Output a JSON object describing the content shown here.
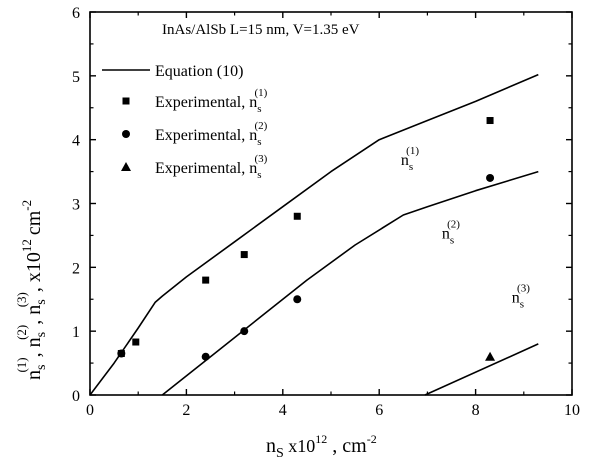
{
  "chart_data": {
    "type": "scatter",
    "title": "InAs/AlSb    L=15 nm,  V=1.35 eV",
    "xlabel": {
      "base": "n",
      "sub": "S",
      "mid": " x10",
      "sup": "12",
      "tail": " , cm",
      "sup2": "-2"
    },
    "ylabel": {
      "t1": "n",
      "s1": "s",
      "p1": "(1)",
      "t2": ", n",
      "s2": "s",
      "p2": "(2)",
      "t3": ", n",
      "s3": "s",
      "p3": "(3)",
      "t4": ",  x10",
      "p4": "12",
      "t5": "cm",
      "p5": "-2"
    },
    "xlim": [
      0,
      10
    ],
    "ylim": [
      0,
      6
    ],
    "xticks": [
      "0",
      "2",
      "4",
      "6",
      "8",
      "10"
    ],
    "yticks": [
      "0",
      "1",
      "2",
      "3",
      "4",
      "5",
      "6"
    ],
    "grid": false,
    "legend_position": "top-left",
    "legend": [
      {
        "label": "Equation (10)",
        "marker": "line"
      },
      {
        "label": "Experimental,  n",
        "sub": "s",
        "sup": "(1)",
        "marker": "square"
      },
      {
        "label": "Experimental,  n",
        "sub": "s",
        "sup": "(2)",
        "marker": "circle"
      },
      {
        "label": "Experimental,  n",
        "sub": "s",
        "sup": "(3)",
        "marker": "triangle"
      }
    ],
    "lines": [
      {
        "label": {
          "t": "n",
          "sub": "s",
          "sup": "(1)"
        },
        "label_at": [
          6.45,
          3.6
        ],
        "x": [
          0,
          0.5,
          1.0,
          1.35,
          1.5,
          2.0,
          3.0,
          4.0,
          5.0,
          6.0,
          7.0,
          8.0,
          9.3
        ],
        "y": [
          0,
          0.5,
          1.05,
          1.45,
          1.55,
          1.85,
          2.4,
          2.95,
          3.5,
          4.0,
          4.3,
          4.6,
          5.02
        ]
      },
      {
        "label": {
          "t": "n",
          "sub": "s",
          "sup": "(2)"
        },
        "label_at": [
          7.3,
          2.45
        ],
        "x": [
          1.5,
          2.5,
          3.5,
          4.5,
          5.5,
          6.5,
          7.0,
          8.0,
          9.3
        ],
        "y": [
          0,
          0.6,
          1.2,
          1.8,
          2.35,
          2.82,
          2.95,
          3.2,
          3.5
        ]
      },
      {
        "label": {
          "t": "n",
          "sub": "s",
          "sup": "(3)"
        },
        "label_at": [
          8.75,
          1.45
        ],
        "x": [
          6.95,
          9.3
        ],
        "y": [
          0,
          0.8
        ]
      }
    ],
    "series": [
      {
        "name": "Experimental,  n_s^(1)",
        "marker": "square",
        "x": [
          0.65,
          0.95,
          2.4,
          3.2,
          4.3,
          8.3
        ],
        "y": [
          0.65,
          0.83,
          1.8,
          2.2,
          2.8,
          4.3
        ]
      },
      {
        "name": "Experimental,  n_s^(2)",
        "marker": "circle",
        "x": [
          0.65,
          2.4,
          3.2,
          4.3,
          8.3
        ],
        "y": [
          0.65,
          0.6,
          1.0,
          1.5,
          3.4
        ]
      },
      {
        "name": "Experimental,  n_s^(3)",
        "marker": "triangle",
        "x": [
          8.3
        ],
        "y": [
          0.6
        ]
      }
    ]
  }
}
